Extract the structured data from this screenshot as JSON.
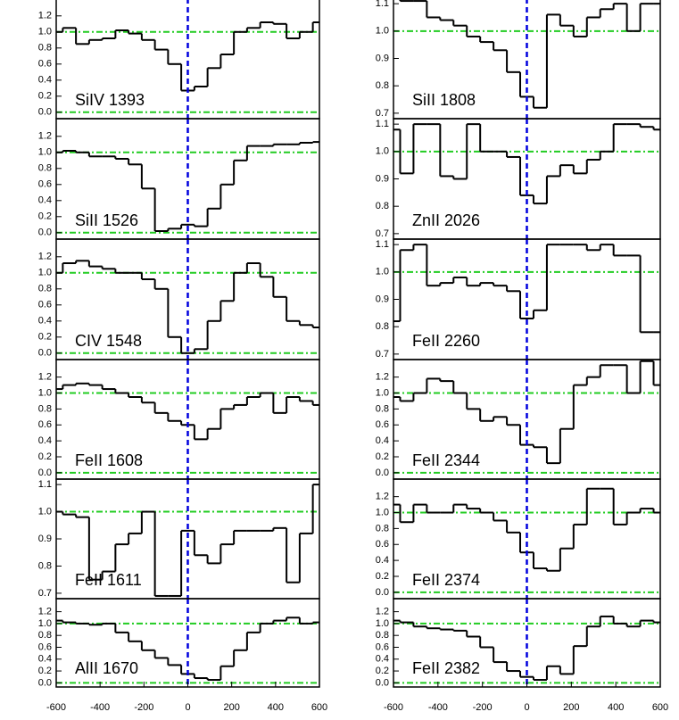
{
  "chart_data": [
    {
      "type": "step",
      "label": "SiIV 1393",
      "x": [
        -600,
        -540,
        -480,
        -420,
        -360,
        -300,
        -240,
        -180,
        -120,
        -60,
        0,
        60,
        120,
        180,
        240,
        300,
        360,
        420,
        480,
        540,
        600
      ],
      "values": [
        1.0,
        1.05,
        0.85,
        0.9,
        0.92,
        1.02,
        0.98,
        0.9,
        0.78,
        0.6,
        0.27,
        0.32,
        0.55,
        0.72,
        1.0,
        1.05,
        1.12,
        1.1,
        0.92,
        1.0,
        1.12
      ],
      "xlim": [
        -600,
        600
      ],
      "ylim": [
        -0.08,
        1.42
      ],
      "yticks": [
        {
          "value": 0,
          "label": "0.0"
        },
        {
          "value": 0.2,
          "label": "0.2"
        },
        {
          "value": 0.4,
          "label": "0.4"
        },
        {
          "value": 0.6,
          "label": "0.6"
        },
        {
          "value": 0.8,
          "label": "0.8"
        },
        {
          "value": 1,
          "label": "1.0"
        },
        {
          "value": 1.2,
          "label": "1.2"
        }
      ],
      "reference_lines": [
        0,
        1
      ],
      "vline": 0,
      "color": "#000000",
      "reference_color": "#22cc22",
      "vline_color": "#0000dd"
    },
    {
      "type": "step",
      "label": "SiII 1526",
      "x": [
        -600,
        -540,
        -480,
        -420,
        -360,
        -300,
        -240,
        -180,
        -120,
        -60,
        0,
        60,
        120,
        180,
        240,
        300,
        360,
        420,
        480,
        540,
        600
      ],
      "values": [
        1.0,
        1.02,
        1.0,
        0.95,
        0.95,
        0.92,
        0.85,
        0.55,
        0.02,
        0.05,
        0.1,
        0.08,
        0.3,
        0.6,
        0.9,
        1.08,
        1.08,
        1.1,
        1.1,
        1.12,
        1.13
      ],
      "xlim": [
        -600,
        600
      ],
      "ylim": [
        -0.08,
        1.42
      ],
      "yticks": [
        {
          "value": 0,
          "label": "0.0"
        },
        {
          "value": 0.2,
          "label": "0.2"
        },
        {
          "value": 0.4,
          "label": "0.4"
        },
        {
          "value": 0.6,
          "label": "0.6"
        },
        {
          "value": 0.8,
          "label": "0.8"
        },
        {
          "value": 1,
          "label": "1.0"
        },
        {
          "value": 1.2,
          "label": "1.2"
        }
      ],
      "reference_lines": [
        0,
        1
      ],
      "vline": 0,
      "color": "#000000",
      "reference_color": "#22cc22",
      "vline_color": "#0000dd"
    },
    {
      "type": "step",
      "label": "CIV 1548",
      "x": [
        -600,
        -540,
        -480,
        -420,
        -360,
        -300,
        -240,
        -180,
        -120,
        -60,
        0,
        60,
        120,
        180,
        240,
        300,
        360,
        420,
        480,
        540,
        600
      ],
      "values": [
        1.0,
        1.12,
        1.15,
        1.08,
        1.05,
        1.0,
        1.0,
        0.92,
        0.8,
        0.2,
        0.0,
        0.05,
        0.4,
        0.65,
        1.0,
        1.12,
        0.95,
        0.7,
        0.4,
        0.35,
        0.32
      ],
      "xlim": [
        -600,
        600
      ],
      "ylim": [
        -0.08,
        1.42
      ],
      "yticks": [
        {
          "value": 0,
          "label": "0.0"
        },
        {
          "value": 0.2,
          "label": "0.2"
        },
        {
          "value": 0.4,
          "label": "0.4"
        },
        {
          "value": 0.6,
          "label": "0.6"
        },
        {
          "value": 0.8,
          "label": "0.8"
        },
        {
          "value": 1,
          "label": "1.0"
        },
        {
          "value": 1.2,
          "label": "1.2"
        }
      ],
      "reference_lines": [
        0,
        1
      ],
      "vline": 0,
      "color": "#000000",
      "reference_color": "#22cc22",
      "vline_color": "#0000dd"
    },
    {
      "type": "step",
      "label": "FeII 1608",
      "x": [
        -600,
        -540,
        -480,
        -420,
        -360,
        -300,
        -240,
        -180,
        -120,
        -60,
        0,
        60,
        120,
        180,
        240,
        300,
        360,
        420,
        480,
        540,
        600
      ],
      "values": [
        1.05,
        1.1,
        1.12,
        1.1,
        1.05,
        1.0,
        0.95,
        0.88,
        0.75,
        0.65,
        0.6,
        0.42,
        0.55,
        0.8,
        0.85,
        0.95,
        1.0,
        0.75,
        0.95,
        0.9,
        0.85
      ],
      "xlim": [
        -600,
        600
      ],
      "ylim": [
        -0.08,
        1.42
      ],
      "yticks": [
        {
          "value": 0,
          "label": "0.0"
        },
        {
          "value": 0.2,
          "label": "0.2"
        },
        {
          "value": 0.4,
          "label": "0.4"
        },
        {
          "value": 0.6,
          "label": "0.6"
        },
        {
          "value": 0.8,
          "label": "0.8"
        },
        {
          "value": 1,
          "label": "1.0"
        },
        {
          "value": 1.2,
          "label": "1.2"
        }
      ],
      "reference_lines": [
        0,
        1
      ],
      "vline": 0,
      "color": "#000000",
      "reference_color": "#22cc22",
      "vline_color": "#0000dd"
    },
    {
      "type": "step",
      "label": "FeII 1611",
      "x": [
        -600,
        -540,
        -480,
        -420,
        -360,
        -300,
        -240,
        -180,
        -120,
        -60,
        0,
        60,
        120,
        180,
        240,
        300,
        360,
        420,
        480,
        540,
        600
      ],
      "values": [
        1.0,
        0.99,
        0.98,
        0.75,
        0.78,
        0.88,
        0.92,
        1.0,
        0.69,
        0.69,
        0.93,
        0.84,
        0.81,
        0.88,
        0.93,
        0.93,
        0.93,
        0.94,
        0.74,
        0.92,
        1.1
      ],
      "xlim": [
        -600,
        600
      ],
      "ylim": [
        0.68,
        1.12
      ],
      "yticks": [
        0.7,
        0.8,
        0.9,
        {
          "value": 1,
          "label": "1.0"
        },
        1.1
      ],
      "reference_lines": [
        1
      ],
      "vline": 0,
      "color": "#000000",
      "reference_color": "#22cc22",
      "vline_color": "#0000dd"
    },
    {
      "type": "step",
      "label": "AlII 1670",
      "x": [
        -600,
        -540,
        -480,
        -420,
        -360,
        -300,
        -240,
        -180,
        -120,
        -60,
        0,
        60,
        120,
        180,
        240,
        300,
        360,
        420,
        480,
        540,
        600
      ],
      "values": [
        1.05,
        1.02,
        1.0,
        0.98,
        1.0,
        0.85,
        0.7,
        0.55,
        0.42,
        0.3,
        0.15,
        0.08,
        0.05,
        0.28,
        0.55,
        0.85,
        1.0,
        1.05,
        1.1,
        1.0,
        1.02
      ],
      "xlim": [
        -600,
        600
      ],
      "ylim": [
        -0.07,
        1.42
      ],
      "yticks": [
        {
          "value": 0,
          "label": "0.0"
        },
        {
          "value": 0.2,
          "label": "0.2"
        },
        {
          "value": 0.4,
          "label": "0.4"
        },
        {
          "value": 0.6,
          "label": "0.6"
        },
        {
          "value": 0.8,
          "label": "0.8"
        },
        {
          "value": 1,
          "label": "1.0"
        },
        {
          "value": 1.2,
          "label": "1.2"
        }
      ],
      "reference_lines": [
        0,
        1
      ],
      "vline": 0,
      "xticks": [
        -600,
        -400,
        -200,
        0,
        200,
        400,
        600
      ],
      "color": "#000000",
      "reference_color": "#22cc22",
      "vline_color": "#0000dd"
    },
    {
      "type": "step",
      "label": "SiII 1808",
      "x": [
        -600,
        -540,
        -480,
        -420,
        -360,
        -300,
        -240,
        -180,
        -120,
        -60,
        0,
        60,
        120,
        180,
        240,
        300,
        360,
        420,
        480,
        540,
        600
      ],
      "values": [
        1.12,
        1.11,
        1.11,
        1.05,
        1.04,
        1.02,
        0.98,
        0.96,
        0.93,
        0.85,
        0.76,
        0.72,
        1.06,
        1.02,
        0.98,
        1.05,
        1.08,
        1.1,
        1.0,
        1.1,
        1.1
      ],
      "xlim": [
        -600,
        600
      ],
      "ylim": [
        0.68,
        1.12
      ],
      "yticks": [
        0.7,
        0.8,
        0.9,
        {
          "value": 1,
          "label": "1.0"
        },
        1.1
      ],
      "reference_lines": [
        1
      ],
      "vline": 0,
      "color": "#000000",
      "reference_color": "#22cc22",
      "vline_color": "#0000dd"
    },
    {
      "type": "step",
      "label": "ZnII 2026",
      "x": [
        -600,
        -540,
        -480,
        -420,
        -360,
        -300,
        -240,
        -180,
        -120,
        -60,
        0,
        60,
        120,
        180,
        240,
        300,
        360,
        420,
        480,
        540,
        600
      ],
      "values": [
        1.08,
        0.92,
        1.1,
        1.1,
        0.91,
        0.9,
        1.1,
        1.0,
        1.0,
        0.98,
        0.84,
        0.81,
        0.91,
        0.95,
        0.92,
        0.97,
        1.0,
        1.1,
        1.1,
        1.09,
        1.08
      ],
      "xlim": [
        -600,
        600
      ],
      "ylim": [
        0.68,
        1.12
      ],
      "yticks": [
        0.7,
        0.8,
        0.9,
        {
          "value": 1,
          "label": "1.0"
        },
        1.1
      ],
      "reference_lines": [
        1
      ],
      "vline": 0,
      "color": "#000000",
      "reference_color": "#22cc22",
      "vline_color": "#0000dd"
    },
    {
      "type": "step",
      "label": "FeII 2260",
      "x": [
        -600,
        -540,
        -480,
        -420,
        -360,
        -300,
        -240,
        -180,
        -120,
        -60,
        0,
        60,
        120,
        180,
        240,
        300,
        360,
        420,
        480,
        540,
        600
      ],
      "values": [
        0.82,
        1.08,
        1.1,
        0.95,
        0.96,
        0.98,
        0.95,
        0.96,
        0.95,
        0.93,
        0.83,
        0.86,
        1.1,
        1.1,
        1.1,
        1.08,
        1.1,
        1.06,
        1.06,
        0.78,
        0.78
      ],
      "xlim": [
        -600,
        600
      ],
      "ylim": [
        0.68,
        1.12
      ],
      "yticks": [
        0.7,
        0.8,
        0.9,
        {
          "value": 1,
          "label": "1.0"
        },
        1.1
      ],
      "reference_lines": [
        1
      ],
      "vline": 0,
      "color": "#000000",
      "reference_color": "#22cc22",
      "vline_color": "#0000dd"
    },
    {
      "type": "step",
      "label": "FeII 2344",
      "x": [
        -600,
        -540,
        -480,
        -420,
        -360,
        -300,
        -240,
        -180,
        -120,
        -60,
        0,
        60,
        120,
        180,
        240,
        300,
        360,
        420,
        480,
        540,
        600
      ],
      "values": [
        0.95,
        0.9,
        1.0,
        1.18,
        1.15,
        1.0,
        0.8,
        0.65,
        0.7,
        0.6,
        0.35,
        0.32,
        0.12,
        0.55,
        1.1,
        1.2,
        1.35,
        1.35,
        1.0,
        1.4,
        1.1
      ],
      "xlim": [
        -600,
        600
      ],
      "ylim": [
        -0.08,
        1.42
      ],
      "yticks": [
        {
          "value": 0,
          "label": "0.0"
        },
        {
          "value": 0.2,
          "label": "0.2"
        },
        {
          "value": 0.4,
          "label": "0.4"
        },
        {
          "value": 0.6,
          "label": "0.6"
        },
        {
          "value": 0.8,
          "label": "0.8"
        },
        {
          "value": 1,
          "label": "1.0"
        },
        {
          "value": 1.2,
          "label": "1.2"
        }
      ],
      "reference_lines": [
        0,
        1
      ],
      "vline": 0,
      "color": "#000000",
      "reference_color": "#22cc22",
      "vline_color": "#0000dd"
    },
    {
      "type": "step",
      "label": "FeII 2374",
      "x": [
        -600,
        -540,
        -480,
        -420,
        -360,
        -300,
        -240,
        -180,
        -120,
        -60,
        0,
        60,
        120,
        180,
        240,
        300,
        360,
        420,
        480,
        540,
        600
      ],
      "values": [
        1.1,
        0.88,
        1.1,
        1.0,
        1.0,
        1.1,
        1.05,
        1.0,
        0.9,
        0.75,
        0.5,
        0.3,
        0.27,
        0.55,
        0.85,
        1.3,
        1.3,
        0.85,
        1.0,
        1.05,
        1.0
      ],
      "xlim": [
        -600,
        600
      ],
      "ylim": [
        -0.08,
        1.42
      ],
      "yticks": [
        {
          "value": 0,
          "label": "0.0"
        },
        {
          "value": 0.2,
          "label": "0.2"
        },
        {
          "value": 0.4,
          "label": "0.4"
        },
        {
          "value": 0.6,
          "label": "0.6"
        },
        {
          "value": 0.8,
          "label": "0.8"
        },
        {
          "value": 1,
          "label": "1.0"
        },
        {
          "value": 1.2,
          "label": "1.2"
        }
      ],
      "reference_lines": [
        0,
        1
      ],
      "vline": 0,
      "color": "#000000",
      "reference_color": "#22cc22",
      "vline_color": "#0000dd"
    },
    {
      "type": "step",
      "label": "FeII 2382",
      "x": [
        -600,
        -540,
        -480,
        -420,
        -360,
        -300,
        -240,
        -180,
        -120,
        -60,
        0,
        60,
        120,
        180,
        240,
        300,
        360,
        420,
        480,
        540,
        600
      ],
      "values": [
        1.05,
        1.02,
        0.95,
        0.92,
        0.9,
        0.88,
        0.78,
        0.6,
        0.35,
        0.2,
        0.1,
        0.05,
        0.28,
        0.15,
        0.62,
        0.95,
        1.12,
        1.0,
        0.95,
        1.05,
        1.02
      ],
      "xlim": [
        -600,
        600
      ],
      "ylim": [
        -0.07,
        1.42
      ],
      "yticks": [
        {
          "value": 0,
          "label": "0.0"
        },
        {
          "value": 0.2,
          "label": "0.2"
        },
        {
          "value": 0.4,
          "label": "0.4"
        },
        {
          "value": 0.6,
          "label": "0.6"
        },
        {
          "value": 0.8,
          "label": "0.8"
        },
        {
          "value": 1,
          "label": "1.0"
        },
        {
          "value": 1.2,
          "label": "1.2"
        }
      ],
      "reference_lines": [
        0,
        1
      ],
      "vline": 0,
      "xticks": [
        -600,
        -400,
        -200,
        0,
        200,
        400,
        600
      ],
      "color": "#000000",
      "reference_color": "#22cc22",
      "vline_color": "#0000dd"
    }
  ]
}
